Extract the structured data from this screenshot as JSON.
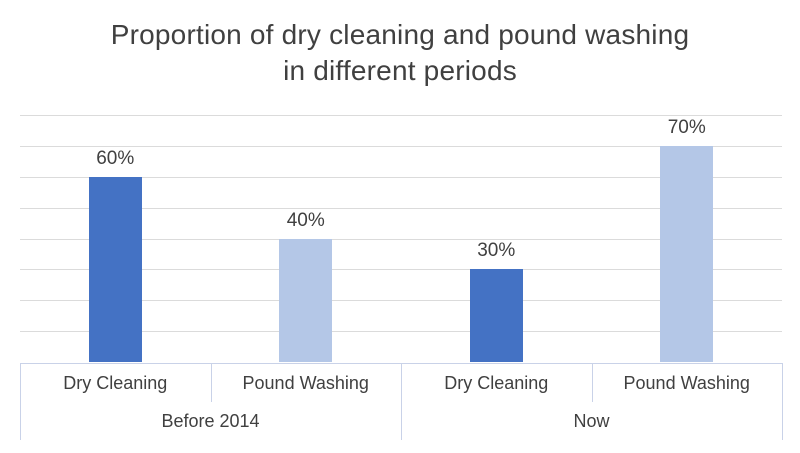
{
  "chart_data": {
    "type": "bar",
    "title": "Proportion of dry cleaning and pound washing in different periods",
    "categories": [
      "Dry Cleaning",
      "Pound Washing",
      "Dry Cleaning",
      "Pound Washing"
    ],
    "values": [
      60,
      40,
      30,
      70
    ],
    "data_labels": [
      "60%",
      "40%",
      "30%",
      "70%"
    ],
    "bar_color_names": [
      "primary",
      "secondary",
      "primary",
      "secondary"
    ],
    "groups": [
      {
        "label": "Before 2014",
        "span": [
          0,
          1
        ]
      },
      {
        "label": "Now",
        "span": [
          2,
          3
        ]
      }
    ],
    "xlabel": "",
    "ylabel": "",
    "ylim": [
      0,
      80
    ],
    "grid_step": 10,
    "grid_on": true,
    "legend": "none",
    "y_axis_labels_visible": false,
    "colors": {
      "primary": "#4472C4",
      "secondary": "#B4C7E7",
      "gridline": "#DBDBDB",
      "axis_line": "#C9D2E8",
      "text": "#404040"
    }
  }
}
